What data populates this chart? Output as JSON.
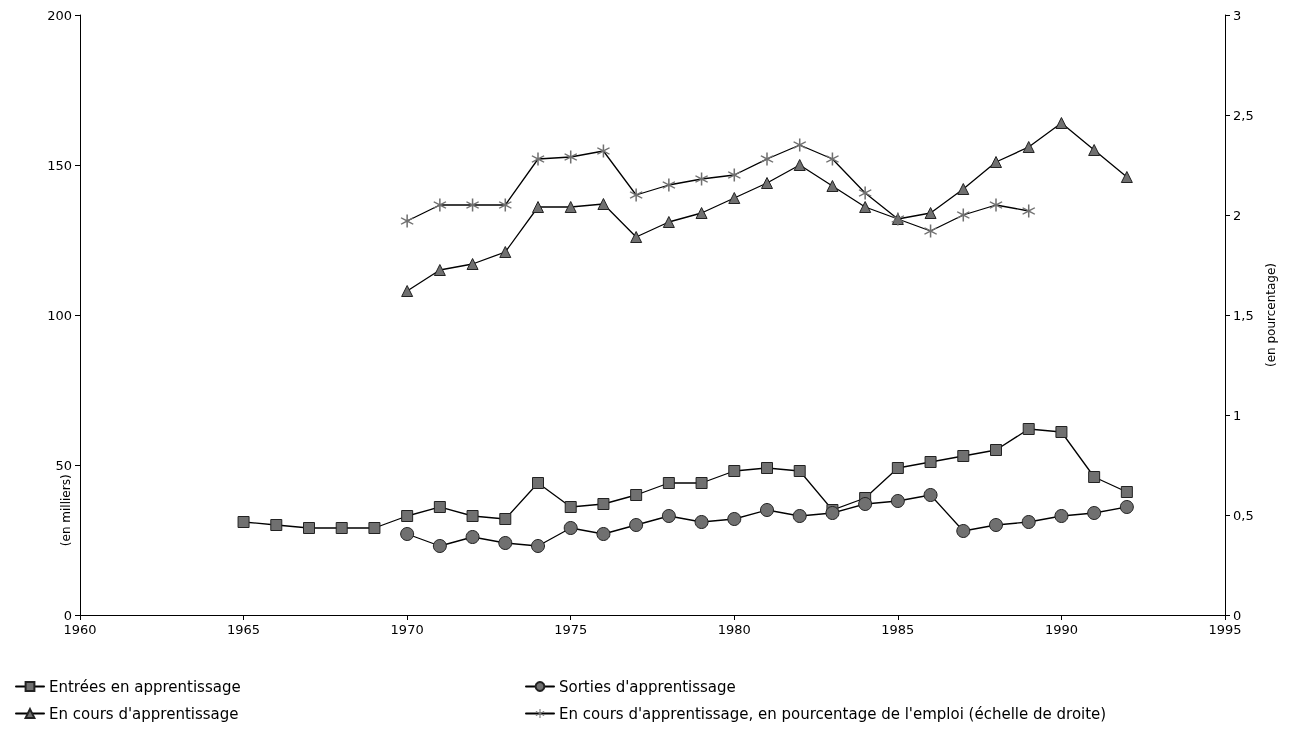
{
  "chart_data": {
    "type": "line",
    "ylabel": "(en milliers)",
    "y2label": "(en pourcentage)",
    "xlim": [
      1960,
      1995
    ],
    "xticks": [
      1960,
      1965,
      1970,
      1975,
      1980,
      1985,
      1990,
      1995
    ],
    "ylim": [
      0,
      200
    ],
    "yticks": [
      0,
      50,
      100,
      150,
      200
    ],
    "y2lim": [
      0,
      3
    ],
    "y2ticks": [
      0,
      {
        "value": 0.5,
        "label": "0,5"
      },
      1,
      {
        "value": 1.5,
        "label": "1,5"
      },
      2,
      {
        "value": 2.5,
        "label": "2,5"
      },
      3
    ],
    "grid": false,
    "legend": "bottom",
    "line_style": "solid",
    "series": [
      {
        "name": "Entrées en apprentissage",
        "color": "#707070",
        "marker": "square",
        "x": [
          1965,
          1966,
          1967,
          1968,
          1969,
          1970,
          1971,
          1972,
          1973,
          1974,
          1975,
          1976,
          1977,
          1978,
          1979,
          1980,
          1981,
          1982,
          1983,
          1984,
          1985,
          1986,
          1987,
          1988,
          1989,
          1990,
          1991,
          1992
        ],
        "values": [
          31,
          30,
          29,
          29,
          29,
          33,
          36,
          33,
          32,
          44,
          36,
          37,
          40,
          44,
          44,
          48,
          49,
          48,
          35,
          39,
          49,
          51,
          53,
          55,
          62,
          61,
          46,
          41
        ]
      },
      {
        "name": "Sorties d'apprentissage",
        "color": "#707070",
        "marker": "circle",
        "x": [
          1970,
          1971,
          1972,
          1973,
          1974,
          1975,
          1976,
          1977,
          1978,
          1979,
          1980,
          1981,
          1982,
          1983,
          1984,
          1985,
          1986,
          1987,
          1988,
          1989,
          1990,
          1991,
          1992
        ],
        "values": [
          27,
          23,
          26,
          24,
          23,
          29,
          27,
          30,
          33,
          31,
          32,
          35,
          33,
          34,
          37,
          38,
          40,
          28,
          30,
          31,
          33,
          34,
          36
        ]
      },
      {
        "name": "En cours d'apprentissage",
        "color": "#707070",
        "marker": "triangle",
        "x": [
          1970,
          1971,
          1972,
          1973,
          1974,
          1975,
          1976,
          1977,
          1978,
          1979,
          1980,
          1981,
          1982,
          1983,
          1984,
          1985,
          1986,
          1987,
          1988,
          1989,
          1990,
          1991,
          1992
        ],
        "values": [
          108,
          115,
          117,
          121,
          136,
          136,
          137,
          126,
          131,
          134,
          139,
          144,
          150,
          143,
          136,
          132,
          134,
          142,
          151,
          156,
          164,
          155,
          146
        ]
      },
      {
        "name": "En cours d'apprentissage, en pourcentage de l'emploi (échelle de droite)",
        "color": "#707070",
        "marker": "star",
        "axis": "y2",
        "x": [
          1970,
          1971,
          1972,
          1973,
          1974,
          1975,
          1976,
          1977,
          1978,
          1979,
          1980,
          1981,
          1982,
          1983,
          1984,
          1985,
          1986,
          1987,
          1988,
          1989
        ],
        "values": [
          1.97,
          2.05,
          2.05,
          2.05,
          2.28,
          2.29,
          2.32,
          2.1,
          2.15,
          2.18,
          2.2,
          2.28,
          2.35,
          2.28,
          2.11,
          1.98,
          1.92,
          2.0,
          2.05,
          2.02
        ]
      }
    ]
  }
}
